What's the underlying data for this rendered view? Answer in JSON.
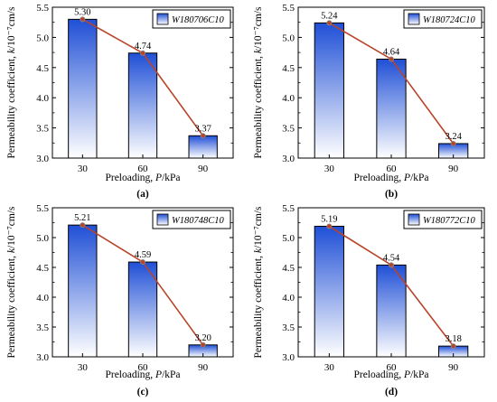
{
  "chart_data": [
    {
      "panel_label": "(a)",
      "type": "bar",
      "legend": "W180706C10",
      "legend_placement": "top-right",
      "categories": [
        "30",
        "60",
        "90"
      ],
      "values": [
        5.3,
        4.74,
        3.37
      ],
      "value_labels": [
        "5.30",
        "4.74",
        "3.37"
      ],
      "overlay_line": true,
      "xlabel": "Preloading, P/kPa",
      "ylabel": "Permeability coefficient, k/10⁻⁷cm/s",
      "ylim": [
        3.0,
        5.5
      ],
      "yticks": [
        "3.0",
        "3.5",
        "4.0",
        "4.5",
        "5.0",
        "5.5"
      ],
      "grid": false
    },
    {
      "panel_label": "(b)",
      "type": "bar",
      "legend": "W180724C10",
      "legend_placement": "top-right",
      "categories": [
        "30",
        "60",
        "90"
      ],
      "values": [
        5.24,
        4.64,
        3.24
      ],
      "value_labels": [
        "5.24",
        "4.64",
        "3.24"
      ],
      "overlay_line": true,
      "xlabel": "Preloading, P/kPa",
      "ylabel": "Permeability coefficient, k/10⁻⁷cm/s",
      "ylim": [
        3.0,
        5.5
      ],
      "yticks": [
        "3.0",
        "3.5",
        "4.0",
        "4.5",
        "5.0",
        "5.5"
      ],
      "grid": false
    },
    {
      "panel_label": "(c)",
      "type": "bar",
      "legend": "W180748C10",
      "legend_placement": "top-right",
      "categories": [
        "30",
        "60",
        "90"
      ],
      "values": [
        5.21,
        4.59,
        3.2
      ],
      "value_labels": [
        "5.21",
        "4.59",
        "3.20"
      ],
      "overlay_line": true,
      "xlabel": "Preloading, P/kPa",
      "ylabel": "Permeability coefficient, k/10⁻⁷cm/s",
      "ylim": [
        3.0,
        5.5
      ],
      "yticks": [
        "3.0",
        "3.5",
        "4.0",
        "4.5",
        "5.0",
        "5.5"
      ],
      "grid": false
    },
    {
      "panel_label": "(d)",
      "type": "bar",
      "legend": "W180772C10",
      "legend_placement": "top-right",
      "categories": [
        "30",
        "60",
        "90"
      ],
      "values": [
        5.19,
        4.54,
        3.18
      ],
      "value_labels": [
        "5.19",
        "4.54",
        "3.18"
      ],
      "overlay_line": true,
      "xlabel": "Preloading, P/kPa",
      "ylabel": "Permeability coefficient, k/10⁻⁷cm/s",
      "ylim": [
        3.0,
        5.5
      ],
      "yticks": [
        "3.0",
        "3.5",
        "4.0",
        "4.5",
        "5.0",
        "5.5"
      ],
      "grid": false
    }
  ],
  "colors": {
    "bar_top": "#1f4fd6",
    "bar_bottom": "#ffffff",
    "bar_edge": "#000000",
    "line": "#b8442a",
    "marker_edge": "#8a8a8a"
  }
}
